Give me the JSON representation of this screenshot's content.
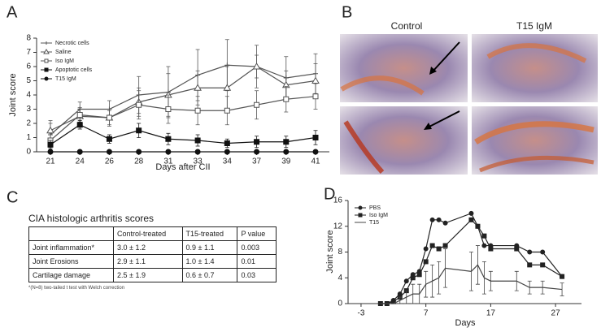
{
  "panel_labels": [
    "A",
    "B",
    "C",
    "D"
  ],
  "chart_data": [
    {
      "type": "line",
      "xlabel": "Days after CII",
      "ylabel": "Joint score",
      "categories": [
        "21",
        "24",
        "26",
        "28",
        "31",
        "33",
        "34",
        "37",
        "39",
        "41"
      ],
      "ylim": [
        0,
        8
      ],
      "yticks": [
        0,
        1,
        2,
        3,
        4,
        5,
        6,
        7,
        8
      ],
      "legend": "upper left",
      "series": [
        {
          "name": "Necrotic cells",
          "color": "#555555",
          "marker": "cross",
          "values": [
            1.2,
            3.0,
            3.0,
            4.0,
            4.2,
            5.4,
            6.1,
            6.0,
            5.2,
            5.5
          ],
          "errors": [
            0.8,
            0.5,
            0.6,
            1.3,
            1.8,
            1.8,
            1.8,
            1.5,
            1.5,
            1.4
          ]
        },
        {
          "name": "Saline",
          "color": "#555555",
          "marker": "triangle",
          "values": [
            1.5,
            2.5,
            2.4,
            3.5,
            4.0,
            4.5,
            4.5,
            6.0,
            4.7,
            5.0
          ],
          "errors": [
            0.7,
            0.6,
            0.6,
            1.0,
            1.5,
            1.2,
            1.5,
            0.8,
            1.0,
            1.2
          ]
        },
        {
          "name": "Iso IgM",
          "color": "#555555",
          "marker": "square-open",
          "values": [
            0.8,
            2.6,
            2.4,
            3.3,
            3.0,
            2.9,
            2.9,
            3.3,
            3.7,
            3.9
          ],
          "errors": [
            0.5,
            0.5,
            0.5,
            1.0,
            1.0,
            1.0,
            1.0,
            1.0,
            0.9,
            0.9
          ]
        },
        {
          "name": "Apoptotic cells",
          "color": "#111111",
          "marker": "square",
          "values": [
            0.5,
            1.9,
            0.9,
            1.5,
            0.9,
            0.8,
            0.6,
            0.7,
            0.7,
            1.0
          ],
          "errors": [
            0.3,
            0.3,
            0.3,
            0.5,
            0.4,
            0.4,
            0.3,
            0.4,
            0.4,
            0.5
          ]
        },
        {
          "name": "T15 IgM",
          "color": "#111111",
          "marker": "circle",
          "values": [
            0,
            0,
            0,
            0,
            0,
            0,
            0,
            0,
            0,
            0
          ]
        }
      ]
    },
    {
      "type": "line",
      "xlabel": "Days",
      "ylabel": "Joint score",
      "x": [
        0,
        1,
        2,
        3,
        4,
        5,
        6,
        7,
        8,
        9,
        10,
        14,
        15,
        16,
        17,
        21,
        23,
        25,
        28
      ],
      "xlim": [
        -5,
        31
      ],
      "xticks": [
        -3,
        7,
        17,
        27
      ],
      "ylim": [
        0,
        16
      ],
      "yticks": [
        0,
        4,
        8,
        12,
        16
      ],
      "legend": "upper left",
      "series": [
        {
          "name": "PBS",
          "color": "#222222",
          "marker": "circle",
          "values": [
            0,
            0,
            0.5,
            1.5,
            3.5,
            4.5,
            5,
            8.5,
            13,
            13,
            12.5,
            14,
            12,
            9,
            9,
            9,
            8,
            8,
            4.2
          ]
        },
        {
          "name": "Iso IgM",
          "color": "#222222",
          "marker": "square",
          "values": [
            0,
            0,
            0.3,
            1,
            2,
            4,
            4.5,
            6.5,
            9,
            8.5,
            9,
            13,
            12,
            10.5,
            8.5,
            8.5,
            6,
            6,
            4.2
          ]
        },
        {
          "name": "T15",
          "color": "#444444",
          "marker": "none",
          "values": [
            0,
            0,
            0,
            0.5,
            1,
            1.5,
            1.5,
            3,
            3.5,
            4,
            5.5,
            5,
            6,
            4,
            3.5,
            3.5,
            2.5,
            2.5,
            2.2
          ],
          "errors": [
            0,
            0,
            0,
            0.5,
            1,
            1.5,
            1.5,
            2,
            2.5,
            2.5,
            3,
            3,
            3,
            2.5,
            1.5,
            1.5,
            1,
            1,
            1
          ]
        }
      ]
    }
  ],
  "histology": {
    "columns": [
      "Control",
      "T15 IgM"
    ]
  },
  "table": {
    "title": "CIA histologic arthritis scores",
    "header": [
      "Control-treated",
      "T15-treated",
      "P value"
    ],
    "rows": [
      [
        "Joint inflammation*",
        "3.0 ± 1.2",
        "0.9 ± 1.1",
        "0.003"
      ],
      [
        "Joint Erosions",
        "2.9 ± 1.1",
        "1.0 ± 1.4",
        "0.01"
      ],
      [
        "Cartilage damage",
        "2.5 ± 1.9",
        "0.6 ± 0.7",
        "0.03"
      ]
    ],
    "footnote": "*(N=8) two-tailed t test with Welch correction"
  }
}
